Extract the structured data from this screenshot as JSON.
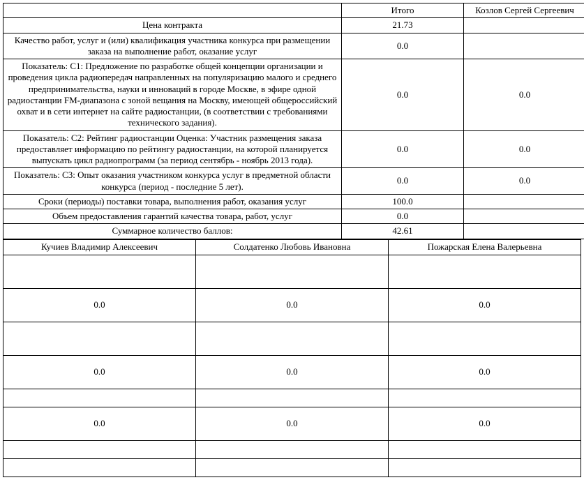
{
  "table1": {
    "headers": [
      "Итого",
      "Козлов Сергей Сергеевич"
    ],
    "rows": [
      {
        "label": "Цена контракта",
        "col1": "21.73",
        "col2": ""
      },
      {
        "label": "Качество работ, услуг и (или) квалификация участника конкурса при размещении заказа на выполнение работ, оказание услуг",
        "col1": "0.0",
        "col2": ""
      },
      {
        "label": "Показатель: C1: Предложение по разработке общей концепции организации и проведения цикла радиопередач направленных на популяризацию малого и среднего предпринимательства, науки и инноваций в городе Москве, в эфире одной радиостанции FM-диапазона с зоной вещания на Москву, имеющей общероссийский охват и в сети интернет на сайте радиостанции, (в соответствии с требованиями технического задания).",
        "col1": "0.0",
        "col2": "0.0"
      },
      {
        "label": "Показатель: C2: Рейтинг радиостанции Оценка: Участник размещения заказа предоставляет информацию по рейтингу радиостанции, на которой планируется выпускать цикл радиопрограмм (за период сентябрь - ноябрь 2013 года).",
        "col1": "0.0",
        "col2": "0.0"
      },
      {
        "label": "Показатель: C3: Опыт оказания участником конкурса услуг в предметной области конкурса (период - последние 5 лет).",
        "col1": "0.0",
        "col2": "0.0"
      },
      {
        "label": "Сроки (периоды) поставки товара, выполнения работ, оказания услуг",
        "col1": "100.0",
        "col2": ""
      },
      {
        "label": "Объем предоставления гарантий качества товара, работ, услуг",
        "col1": "0.0",
        "col2": ""
      },
      {
        "label": "Суммарное количество баллов:",
        "col1": "42.61",
        "col2": ""
      }
    ],
    "col_widths": {
      "c0": "485px",
      "c1": "175px",
      "c2": "175px"
    }
  },
  "table2": {
    "headers": [
      "Кучиев Владимир Алексеевич",
      "Солдатенко Любовь Ивановна",
      "Пожарская Елена Валерьевна"
    ],
    "rows": [
      {
        "c0": "",
        "c1": "",
        "c2": "",
        "tall": true
      },
      {
        "c0": "0.0",
        "c1": "0.0",
        "c2": "0.0",
        "tall": true
      },
      {
        "c0": "",
        "c1": "",
        "c2": "",
        "tall": true
      },
      {
        "c0": "0.0",
        "c1": "0.0",
        "c2": "0.0",
        "tall": true
      },
      {
        "c0": "",
        "c1": "",
        "c2": ""
      },
      {
        "c0": "0.0",
        "c1": "0.0",
        "c2": "0.0",
        "tall": true
      },
      {
        "c0": "",
        "c1": "",
        "c2": ""
      },
      {
        "c0": "",
        "c1": "",
        "c2": ""
      }
    ]
  }
}
